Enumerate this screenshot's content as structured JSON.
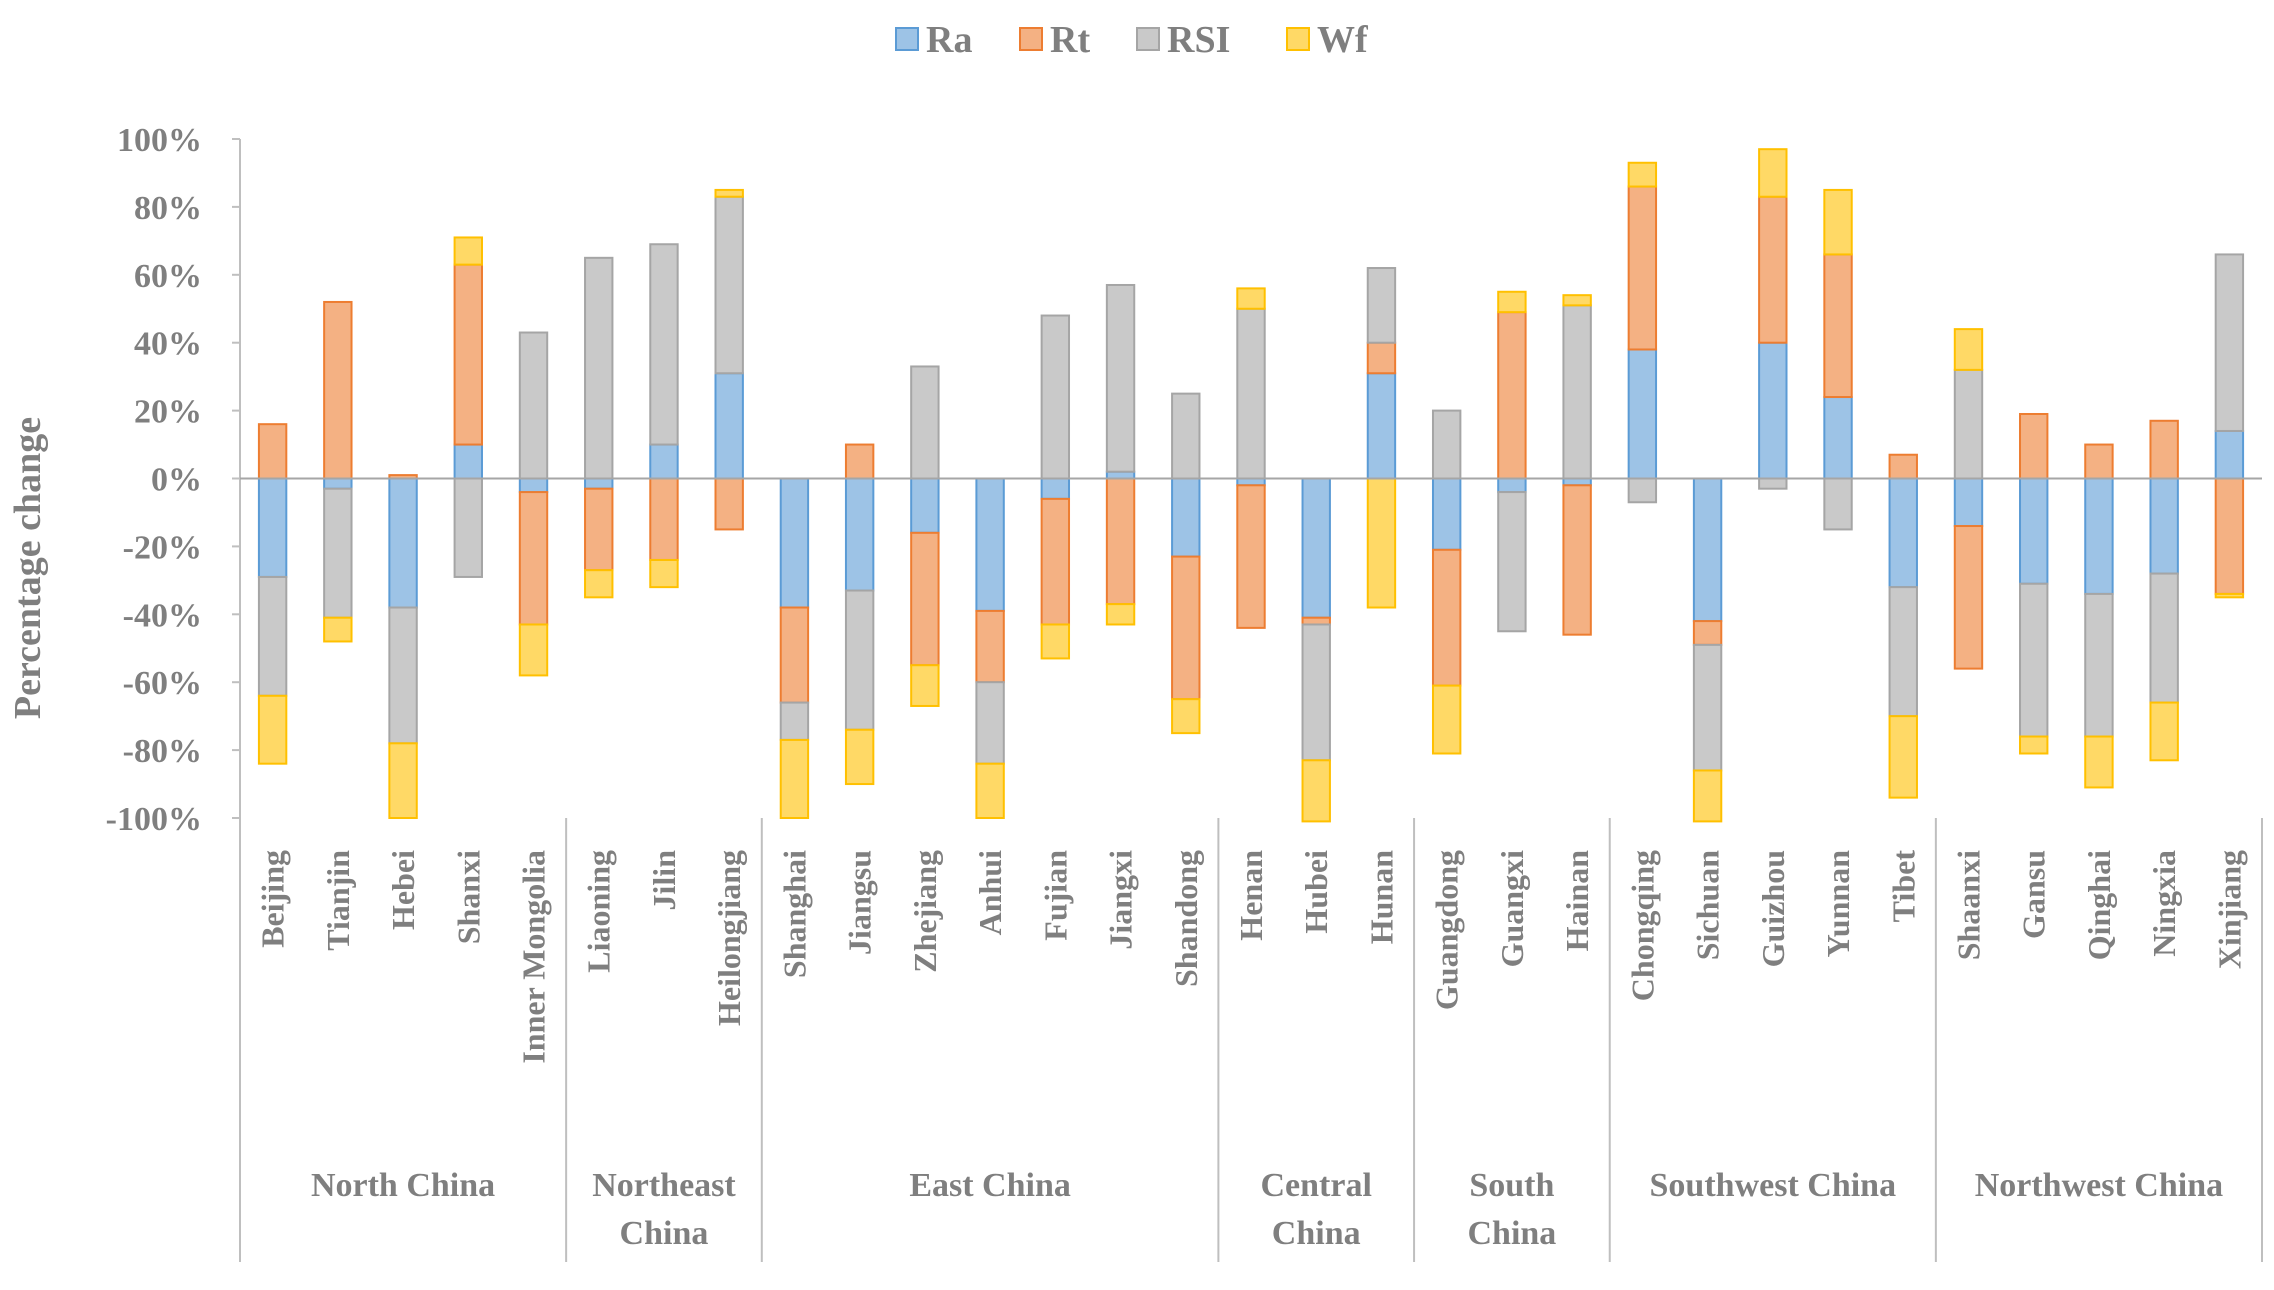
{
  "chart_data": {
    "type": "bar",
    "stacked": true,
    "title": "",
    "xlabel": "",
    "ylabel": "Percentage change",
    "ylim": [
      -100,
      100
    ],
    "yticks": [
      100,
      80,
      60,
      40,
      20,
      0,
      -20,
      -40,
      -60,
      -80,
      -100
    ],
    "ytick_labels": [
      "100%",
      "80%",
      "60%",
      "40%",
      "20%",
      "0%",
      "-20%",
      "-40%",
      "-60%",
      "-80%",
      "-100%"
    ],
    "legend": {
      "position": "top-center",
      "entries": [
        {
          "key": "Ra",
          "label": "Ra",
          "fill": "#9dc3e6",
          "stroke": "#5b9bd5"
        },
        {
          "key": "Rt",
          "label": "Rt",
          "fill": "#f4b183",
          "stroke": "#ed7d31"
        },
        {
          "key": "RSI",
          "label": "RSI",
          "fill": "#c9c9c9",
          "stroke": "#a5a5a5"
        },
        {
          "key": "Wf",
          "label": "Wf",
          "fill": "#ffd966",
          "stroke": "#ffc000"
        }
      ]
    },
    "stack_order": [
      "Ra",
      "Rt",
      "RSI",
      "Wf"
    ],
    "regions": [
      {
        "name": "North China",
        "lines": [
          "North China"
        ],
        "count": 5
      },
      {
        "name": "Northeast China",
        "lines": [
          "Northeast",
          "China"
        ],
        "count": 3
      },
      {
        "name": "East China",
        "lines": [
          "East China"
        ],
        "count": 7
      },
      {
        "name": "Central China",
        "lines": [
          "Central",
          "China"
        ],
        "count": 3
      },
      {
        "name": "South China",
        "lines": [
          "South",
          "China"
        ],
        "count": 3
      },
      {
        "name": "Southwest China",
        "lines": [
          "Southwest China"
        ],
        "count": 5
      },
      {
        "name": "Northwest China",
        "lines": [
          "Northwest China"
        ],
        "count": 5
      }
    ],
    "categories": [
      "Beijing",
      "Tianjin",
      "Hebei",
      "Shanxi",
      "Inner Mongolia",
      "Liaoning",
      "Jilin",
      "Heilongjiang",
      "Shanghai",
      "Jiangsu",
      "Zhejiang",
      "Anhui",
      "Fujian",
      "Jiangxi",
      "Shandong",
      "Henan",
      "Hubei",
      "Hunan",
      "Guangdong",
      "Guangxi",
      "Hainan",
      "Chongqing",
      "Sichuan",
      "Guizhou",
      "Yunnan",
      "Tibet",
      "Shaanxi",
      "Gansu",
      "Qinghai",
      "Ningxia",
      "Xinjiang"
    ],
    "series": [
      {
        "name": "Ra",
        "values": [
          -29,
          -3,
          -38,
          10,
          -4,
          -3,
          10,
          31,
          -38,
          -33,
          -16,
          -39,
          -6,
          2,
          -23,
          -2,
          -41,
          31,
          -21,
          -4,
          -2,
          38,
          -42,
          40,
          24,
          -32,
          -14,
          -31,
          -34,
          -28,
          14
        ]
      },
      {
        "name": "Rt",
        "values": [
          16,
          52,
          1,
          53,
          -39,
          -24,
          -24,
          -15,
          -28,
          10,
          -39,
          -21,
          -37,
          -37,
          -42,
          -42,
          -2,
          9,
          -40,
          49,
          -44,
          48,
          -7,
          43,
          42,
          7,
          -42,
          19,
          10,
          17,
          -34
        ]
      },
      {
        "name": "RSI",
        "values": [
          -35,
          -38,
          -40,
          -29,
          43,
          65,
          59,
          52,
          -11,
          -41,
          33,
          -24,
          48,
          55,
          25,
          50,
          -40,
          22,
          20,
          -41,
          51,
          -7,
          -37,
          -3,
          -15,
          -38,
          32,
          -45,
          -42,
          -38,
          52
        ]
      },
      {
        "name": "Wf",
        "values": [
          -20,
          -7,
          -22,
          8,
          -15,
          -8,
          -8,
          2,
          -23,
          -16,
          -12,
          -16,
          -10,
          -6,
          -10,
          6,
          -18,
          -38,
          -20,
          6,
          3,
          7,
          -15,
          14,
          19,
          -24,
          12,
          -5,
          -15,
          -17,
          -1
        ]
      }
    ]
  }
}
